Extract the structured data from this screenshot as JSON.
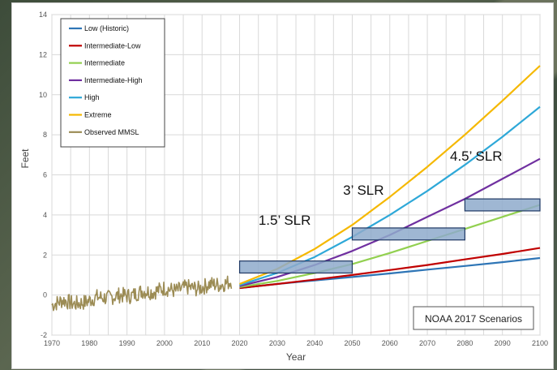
{
  "chart_data": {
    "type": "line",
    "xlabel": "Year",
    "ylabel": "Feet",
    "xlim": [
      1970,
      2100
    ],
    "ylim": [
      -2,
      14
    ],
    "xticks": [
      "1970",
      "1980",
      "1990",
      "2000",
      "2010",
      "2020",
      "2030",
      "2040",
      "2050",
      "2060",
      "2070",
      "2080",
      "2090",
      "2100"
    ],
    "yticks": [
      "-2",
      "0",
      "2",
      "4",
      "6",
      "8",
      "10",
      "12",
      "14"
    ],
    "grid": true,
    "legend_position": "top-left",
    "series": [
      {
        "name": "Low (Historic)",
        "color": "#2e75b6",
        "x": [
          2020,
          2030,
          2040,
          2050,
          2060,
          2070,
          2080,
          2090,
          2100
        ],
        "y": [
          0.35,
          0.55,
          0.73,
          0.9,
          1.08,
          1.27,
          1.45,
          1.64,
          1.85
        ]
      },
      {
        "name": "Intermediate-Low",
        "color": "#c00000",
        "x": [
          2020,
          2030,
          2040,
          2050,
          2060,
          2070,
          2080,
          2090,
          2100
        ],
        "y": [
          0.35,
          0.55,
          0.77,
          1.0,
          1.25,
          1.5,
          1.78,
          2.05,
          2.35
        ]
      },
      {
        "name": "Intermediate",
        "color": "#92d050",
        "x": [
          2020,
          2030,
          2040,
          2050,
          2060,
          2070,
          2080,
          2090,
          2100
        ],
        "y": [
          0.4,
          0.7,
          1.1,
          1.55,
          2.1,
          2.7,
          3.3,
          3.9,
          4.5
        ]
      },
      {
        "name": "Intermediate-High",
        "color": "#7030a0",
        "x": [
          2020,
          2030,
          2040,
          2050,
          2060,
          2070,
          2080,
          2090,
          2100
        ],
        "y": [
          0.45,
          0.9,
          1.5,
          2.2,
          3.0,
          3.9,
          4.8,
          5.8,
          6.8
        ]
      },
      {
        "name": "High",
        "color": "#2ea8d8",
        "x": [
          2020,
          2030,
          2040,
          2050,
          2060,
          2070,
          2080,
          2090,
          2100
        ],
        "y": [
          0.5,
          1.1,
          1.9,
          2.9,
          4.0,
          5.2,
          6.5,
          7.9,
          9.4
        ]
      },
      {
        "name": "Extreme",
        "color": "#f5b800",
        "x": [
          2020,
          2030,
          2040,
          2050,
          2060,
          2070,
          2080,
          2090,
          2100
        ],
        "y": [
          0.55,
          1.3,
          2.3,
          3.5,
          4.9,
          6.4,
          8.0,
          9.7,
          11.45
        ]
      },
      {
        "name": "Observed MMSL",
        "color": "#9c8c55",
        "x": [
          1970,
          1973,
          1976,
          1979,
          1982,
          1985,
          1988,
          1991,
          1994,
          1997,
          2000,
          2003,
          2006,
          2009,
          2012,
          2015,
          2018
        ],
        "y": [
          -0.5,
          -0.25,
          -0.45,
          -0.35,
          -0.1,
          -0.15,
          0.0,
          -0.05,
          0.2,
          0.15,
          0.35,
          0.2,
          0.4,
          0.3,
          0.55,
          0.5,
          0.7
        ]
      }
    ],
    "annotations": [
      {
        "text": "1.5’ SLR",
        "x": 2032,
        "y": 3.5
      },
      {
        "text": "3’ SLR",
        "x": 2053,
        "y": 5.0
      },
      {
        "text": "4.5’ SLR",
        "x": 2083,
        "y": 6.7
      }
    ],
    "bands": [
      {
        "x0": 2020,
        "x1": 2050,
        "y0": 1.1,
        "y1": 1.7
      },
      {
        "x0": 2050,
        "x1": 2080,
        "y0": 2.75,
        "y1": 3.35
      },
      {
        "x0": 2080,
        "x1": 2100,
        "y0": 4.2,
        "y1": 4.8
      }
    ],
    "note": "NOAA 2017 Scenarios"
  }
}
